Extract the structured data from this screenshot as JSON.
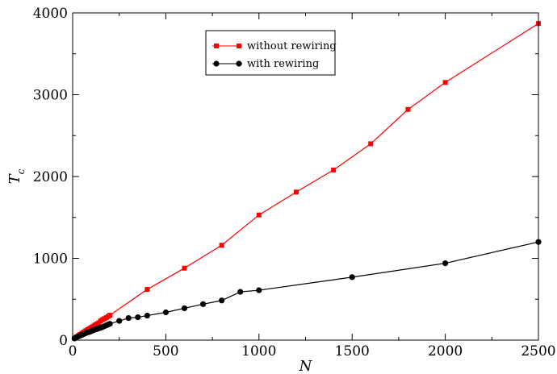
{
  "chart_data": {
    "type": "line",
    "xlabel": "N",
    "ylabel_main": "T",
    "ylabel_sub": "c",
    "xlim": [
      0,
      2500
    ],
    "ylim": [
      0,
      4000
    ],
    "xticks": [
      0,
      500,
      1000,
      1500,
      2000,
      2500
    ],
    "yticks": [
      0,
      1000,
      2000,
      3000,
      4000
    ],
    "xtick_labels": [
      "0",
      "500",
      "1000",
      "1500",
      "2000",
      "2500"
    ],
    "ytick_labels": [
      "0",
      "1000",
      "2000",
      "3000",
      "4000"
    ],
    "grid": false,
    "legend_position": "top-center",
    "series": [
      {
        "name": "without rewiring",
        "color": "#ff0000",
        "marker": "square",
        "x": [
          10,
          20,
          30,
          40,
          50,
          60,
          70,
          80,
          90,
          100,
          110,
          120,
          130,
          140,
          150,
          160,
          170,
          180,
          190,
          200,
          400,
          600,
          800,
          1000,
          1200,
          1400,
          1600,
          1800,
          2000,
          2500
        ],
        "y": [
          25,
          40,
          55,
          70,
          85,
          100,
          115,
          128,
          142,
          155,
          170,
          185,
          198,
          212,
          235,
          250,
          262,
          275,
          290,
          305,
          620,
          880,
          1160,
          1530,
          1810,
          2080,
          2400,
          2820,
          3150,
          3870
        ]
      },
      {
        "name": "with rewiring",
        "color": "#000000",
        "marker": "circle",
        "x": [
          10,
          20,
          30,
          40,
          50,
          60,
          70,
          80,
          90,
          100,
          110,
          120,
          130,
          140,
          150,
          160,
          170,
          180,
          190,
          200,
          250,
          300,
          350,
          400,
          500,
          600,
          700,
          800,
          900,
          1000,
          1500,
          2000,
          2500
        ],
        "y": [
          20,
          35,
          45,
          55,
          65,
          75,
          85,
          95,
          100,
          110,
          120,
          128,
          135,
          145,
          150,
          160,
          170,
          180,
          190,
          200,
          235,
          270,
          280,
          300,
          340,
          390,
          440,
          485,
          590,
          610,
          770,
          940,
          1200
        ]
      }
    ]
  }
}
